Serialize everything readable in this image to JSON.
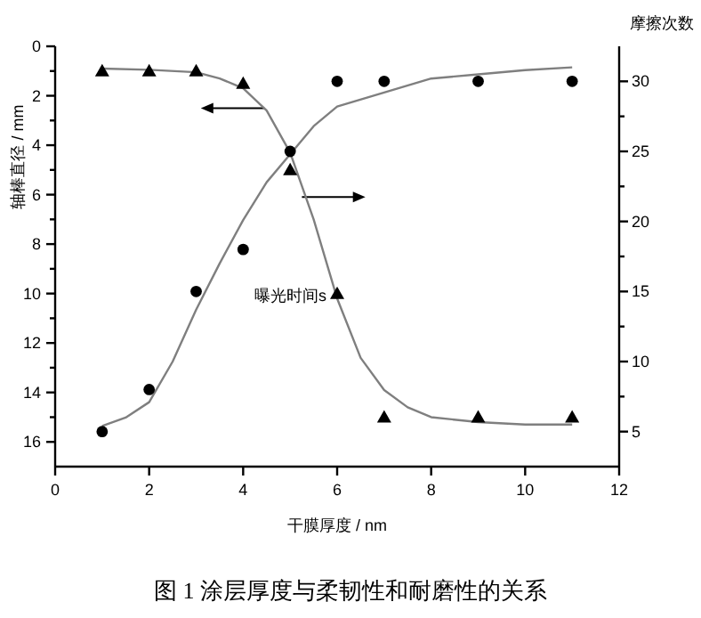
{
  "chart_data": {
    "type": "scatter",
    "title": "图 1  涂层厚度与柔韧性和耐磨性的关系",
    "xlabel": "干膜厚度 / nm",
    "ylabel": "轴棒直径 / mm",
    "y2label": "摩擦次数",
    "annotations": [
      "曝光时间s"
    ],
    "xlim": [
      0,
      12
    ],
    "xticks": [
      0,
      2,
      4,
      6,
      8,
      10,
      12
    ],
    "ylim": [
      17,
      0
    ],
    "yticks": [
      0,
      {
        "value": 1,
        "label": null
      },
      2,
      {
        "value": 3,
        "label": null
      },
      4,
      {
        "value": 5,
        "label": null
      },
      6,
      {
        "value": 7,
        "label": null
      },
      8,
      {
        "value": 9,
        "label": null
      },
      10,
      {
        "value": 11,
        "label": null
      },
      12,
      {
        "value": 13,
        "label": null
      },
      14,
      {
        "value": 15,
        "label": null
      },
      16
    ],
    "y2lim": [
      2.5,
      32.5
    ],
    "y2ticks": [
      5,
      {
        "value": 7.5,
        "label": null
      },
      10,
      {
        "value": 12.5,
        "label": null
      },
      15,
      {
        "value": 17.5,
        "label": null
      },
      20,
      {
        "value": 22.5,
        "label": null
      },
      25,
      {
        "value": 27.5,
        "label": null
      },
      30
    ],
    "series": [
      {
        "type": "scatter",
        "marker": "triangle",
        "color": "#000000",
        "axis": "y",
        "x": [
          1,
          2,
          3,
          4,
          5,
          6,
          7,
          9,
          11
        ],
        "values": [
          1.0,
          1.0,
          1.0,
          1.5,
          5.0,
          10.0,
          15.0,
          15.0,
          15.0
        ]
      },
      {
        "type": "scatter",
        "marker": "circle",
        "color": "#000000",
        "axis": "y2",
        "x": [
          1,
          2,
          3,
          4,
          5,
          6,
          7,
          9,
          11
        ],
        "values": [
          5.0,
          8.0,
          15.0,
          18.0,
          25.0,
          30.0,
          30.0,
          30.0,
          30.0
        ]
      },
      {
        "type": "line",
        "marker": "none",
        "line_style": "solid",
        "color": "#7f7f7f",
        "axis": "y",
        "x": [
          1,
          2,
          3,
          3.5,
          4,
          4.5,
          5,
          5.5,
          6,
          6.5,
          7,
          7.5,
          8,
          9,
          10,
          11
        ],
        "values": [
          0.9,
          0.95,
          1.05,
          1.3,
          1.7,
          2.6,
          4.3,
          7.0,
          10.2,
          12.6,
          13.9,
          14.6,
          15.0,
          15.2,
          15.3,
          15.3
        ]
      },
      {
        "type": "line",
        "marker": "none",
        "line_style": "solid",
        "color": "#7f7f7f",
        "axis": "y2",
        "x": [
          1,
          1.5,
          2,
          2.5,
          3,
          3.5,
          4,
          4.5,
          5,
          5.5,
          6,
          7,
          8,
          9,
          10,
          11
        ],
        "values": [
          5.4,
          6.0,
          7.1,
          10.0,
          13.7,
          17.0,
          20.1,
          22.8,
          24.8,
          26.8,
          28.2,
          29.2,
          30.2,
          30.5,
          30.8,
          31.0
        ]
      }
    ]
  }
}
